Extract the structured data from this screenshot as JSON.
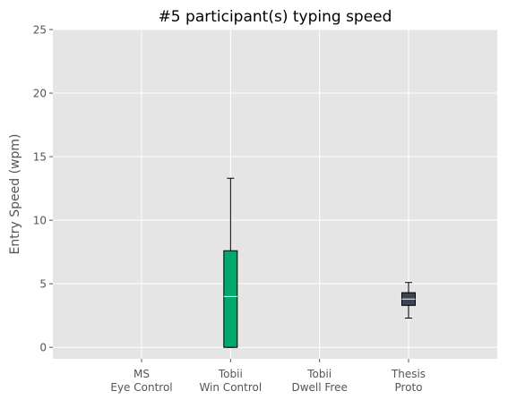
{
  "chart_data": {
    "type": "boxplot",
    "title": "#5 participant(s) typing speed",
    "xlabel": "",
    "ylabel": "Entry Speed (wpm)",
    "ylim": [
      -0.9,
      25
    ],
    "yticks": [
      0,
      5,
      10,
      15,
      20,
      25
    ],
    "grid": true,
    "categories": [
      [
        "MS",
        "Eye Control"
      ],
      [
        "Tobii",
        "Win Control"
      ],
      [
        "Tobii",
        "Dwell Free"
      ],
      [
        "Thesis",
        "Proto"
      ]
    ],
    "boxes": [
      null,
      {
        "whislo": 0,
        "q1": 0,
        "med": 4.0,
        "q3": 7.6,
        "whishi": 13.3,
        "color": "#00a86b"
      },
      null,
      {
        "whislo": 2.3,
        "q1": 3.3,
        "med": 3.8,
        "q3": 4.3,
        "whishi": 5.1,
        "color": "#3a4452"
      }
    ]
  }
}
